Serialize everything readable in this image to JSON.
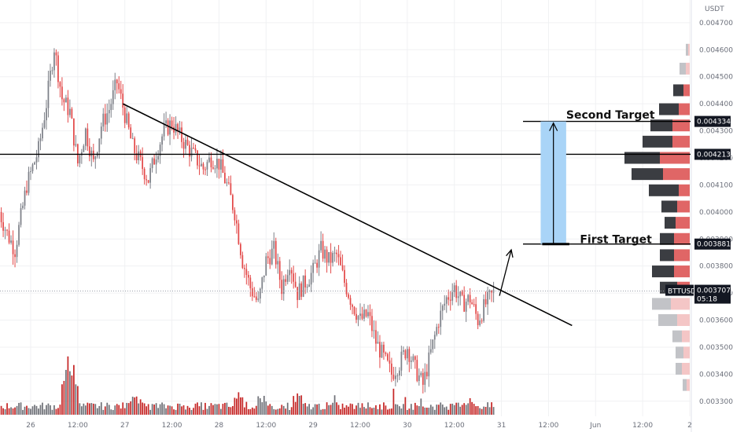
{
  "chart_data": {
    "type": "candlestick",
    "symbol": "BTTUSDT",
    "currency_label": "USDT",
    "ylim": [
      0.00325,
      0.00472
    ],
    "y_ticks": [
      "0.0033000",
      "0.0034000",
      "0.0035000",
      "0.0036000",
      "0.0037000",
      "0.0038000",
      "0.0039000",
      "0.0040000",
      "0.0041000",
      "0.0042000",
      "0.0043000",
      "0.0044000",
      "0.0045000",
      "0.0046000",
      "0.0047000"
    ],
    "x_ticks": [
      {
        "label": "26",
        "t": 0
      },
      {
        "label": "12:00",
        "t": 12
      },
      {
        "label": "27",
        "t": 24
      },
      {
        "label": "12:00",
        "t": 36
      },
      {
        "label": "28",
        "t": 48
      },
      {
        "label": "12:00",
        "t": 60
      },
      {
        "label": "29",
        "t": 72
      },
      {
        "label": "12:00",
        "t": 84
      },
      {
        "label": "30",
        "t": 96
      },
      {
        "label": "12:00",
        "t": 108
      },
      {
        "label": "31",
        "t": 120
      },
      {
        "label": "12:00",
        "t": 132
      },
      {
        "label": "Jun",
        "t": 144
      },
      {
        "label": "12:00",
        "t": 156
      },
      {
        "label": "2",
        "t": 168
      }
    ],
    "x_range_hours": [
      -8,
      170
    ],
    "price_path": [
      [
        -8,
        0.004
      ],
      [
        -6,
        0.00392
      ],
      [
        -4,
        0.00386
      ],
      [
        -1,
        0.0041
      ],
      [
        2,
        0.00423
      ],
      [
        4,
        0.0044
      ],
      [
        6,
        0.00461
      ],
      [
        8,
        0.00442
      ],
      [
        10,
        0.00437
      ],
      [
        12,
        0.00418
      ],
      [
        14,
        0.0043
      ],
      [
        16,
        0.00418
      ],
      [
        18,
        0.00432
      ],
      [
        20,
        0.00438
      ],
      [
        22,
        0.00448
      ],
      [
        24,
        0.00436
      ],
      [
        26,
        0.00424
      ],
      [
        28,
        0.00418
      ],
      [
        30,
        0.00412
      ],
      [
        32,
        0.00422
      ],
      [
        34,
        0.0043
      ],
      [
        36,
        0.00433
      ],
      [
        38,
        0.00428
      ],
      [
        40,
        0.00424
      ],
      [
        42,
        0.0042
      ],
      [
        44,
        0.00416
      ],
      [
        46,
        0.0042
      ],
      [
        48,
        0.00418
      ],
      [
        50,
        0.0041
      ],
      [
        52,
        0.004
      ],
      [
        54,
        0.00382
      ],
      [
        56,
        0.00372
      ],
      [
        58,
        0.00366
      ],
      [
        60,
        0.00382
      ],
      [
        62,
        0.00386
      ],
      [
        64,
        0.00372
      ],
      [
        66,
        0.00382
      ],
      [
        68,
        0.0037
      ],
      [
        70,
        0.00374
      ],
      [
        72,
        0.00378
      ],
      [
        74,
        0.00386
      ],
      [
        76,
        0.00382
      ],
      [
        78,
        0.00384
      ],
      [
        80,
        0.00374
      ],
      [
        82,
        0.00366
      ],
      [
        84,
        0.0036
      ],
      [
        86,
        0.00362
      ],
      [
        88,
        0.00352
      ],
      [
        90,
        0.00346
      ],
      [
        92,
        0.0034
      ],
      [
        94,
        0.00344
      ],
      [
        96,
        0.0035
      ],
      [
        98,
        0.00342
      ],
      [
        100,
        0.00336
      ],
      [
        102,
        0.00348
      ],
      [
        104,
        0.0036
      ],
      [
        106,
        0.00368
      ],
      [
        108,
        0.00372
      ],
      [
        110,
        0.00366
      ],
      [
        112,
        0.00368
      ],
      [
        114,
        0.0036
      ],
      [
        116,
        0.00366
      ],
      [
        118,
        0.0037
      ]
    ],
    "volume_peaks": [
      [
        10,
        70
      ],
      [
        11,
        50
      ],
      [
        9,
        40
      ],
      [
        26,
        22
      ],
      [
        53,
        30
      ],
      [
        59,
        22
      ],
      [
        68,
        25
      ],
      [
        112,
        20
      ]
    ],
    "horizontal_levels": [
      {
        "price": 0.0042131,
        "label": "0.0042131",
        "span": "full"
      },
      {
        "price": 0.0043348,
        "label": "0.0043348",
        "span": "right"
      },
      {
        "price": 0.0038812,
        "label": "0.0038812",
        "span": "right"
      }
    ],
    "trendline": {
      "from": {
        "t": 23.5,
        "price": 0.0044
      },
      "to": {
        "t": 138,
        "price": 0.00358
      }
    },
    "current_price": {
      "label": "0.0037074",
      "price": 0.0037074,
      "countdown": "05:18",
      "symbol": "BTTUSDT"
    },
    "annotations": [
      {
        "text": "Second Target",
        "t": 136.5,
        "price": 0.00436
      },
      {
        "text": "First Target",
        "t": 140,
        "price": 0.0039
      }
    ],
    "target_box": {
      "t_start": 130,
      "t_end": 136.5,
      "price_from": 0.0038812,
      "price_to": 0.0043348
    },
    "projection_arrow": {
      "from": {
        "t": 119.5,
        "price": 0.00369
      },
      "to": {
        "t": 122.5,
        "price": 0.00386
      }
    },
    "volume_profile": [
      {
        "price": 0.0046,
        "up": 3,
        "down": 2,
        "faint": true
      },
      {
        "price": 0.00453,
        "up": 8,
        "down": 5,
        "faint": true
      },
      {
        "price": 0.00445,
        "up": 13,
        "down": 8,
        "faint": false
      },
      {
        "price": 0.00438,
        "up": 25,
        "down": 14,
        "faint": false
      },
      {
        "price": 0.00432,
        "up": 28,
        "down": 22,
        "faint": false
      },
      {
        "price": 0.00426,
        "up": 38,
        "down": 22,
        "faint": false
      },
      {
        "price": 0.0042,
        "up": 45,
        "down": 38,
        "faint": false
      },
      {
        "price": 0.00414,
        "up": 40,
        "down": 34,
        "faint": false
      },
      {
        "price": 0.00408,
        "up": 38,
        "down": 14,
        "faint": false
      },
      {
        "price": 0.00402,
        "up": 20,
        "down": 16,
        "faint": false
      },
      {
        "price": 0.00396,
        "up": 14,
        "down": 18,
        "faint": false
      },
      {
        "price": 0.0039,
        "up": 18,
        "down": 20,
        "faint": false
      },
      {
        "price": 0.00384,
        "up": 18,
        "down": 20,
        "faint": false
      },
      {
        "price": 0.00378,
        "up": 28,
        "down": 20,
        "faint": false
      },
      {
        "price": 0.00372,
        "up": 22,
        "down": 16,
        "faint": false
      },
      {
        "price": 0.00366,
        "up": 24,
        "down": 24,
        "faint": true
      },
      {
        "price": 0.0036,
        "up": 24,
        "down": 16,
        "faint": true
      },
      {
        "price": 0.00354,
        "up": 12,
        "down": 10,
        "faint": true
      },
      {
        "price": 0.00348,
        "up": 10,
        "down": 8,
        "faint": true
      },
      {
        "price": 0.00342,
        "up": 8,
        "down": 10,
        "faint": true
      },
      {
        "price": 0.00336,
        "up": 5,
        "down": 4,
        "faint": true
      }
    ]
  },
  "colors": {
    "up": "#7d8088",
    "down": "#e34a4a",
    "profile_up": "#3b3d42",
    "profile_down": "#e06666",
    "profile_up_faint": "#c2c3c7",
    "profile_down_faint": "#f4c6c6",
    "target_box": "#a9d4f7",
    "grid": "#f0f1f3"
  }
}
